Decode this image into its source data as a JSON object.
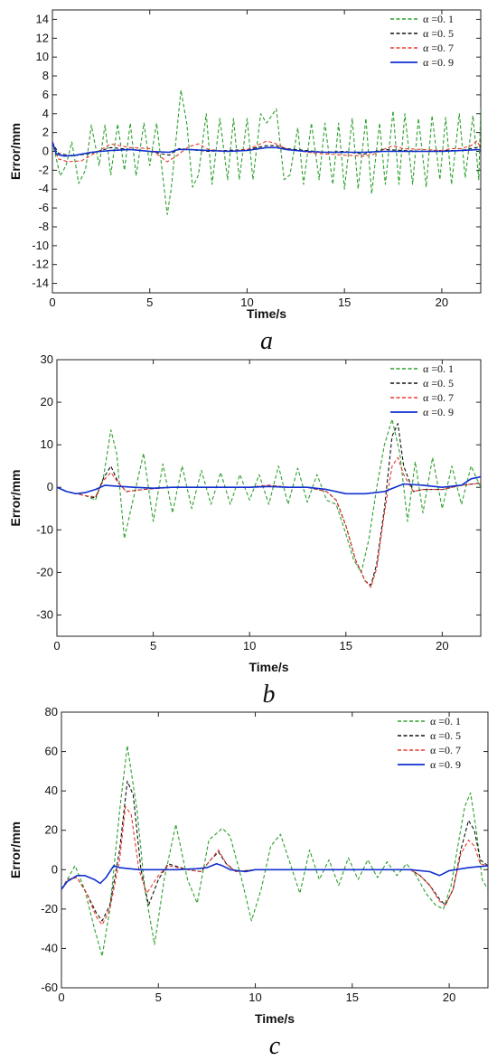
{
  "chart_data": [
    {
      "type": "line",
      "panel_label": "a",
      "xlabel": "Time/s",
      "ylabel": "Error/mm",
      "xlim": [
        0,
        22
      ],
      "ylim": [
        -15,
        15
      ],
      "xticks": [
        0,
        5,
        10,
        15,
        20
      ],
      "yticks": [
        14,
        12,
        10,
        8,
        6,
        4,
        2,
        0,
        -2,
        -4,
        -6,
        -8,
        -10,
        -12,
        -14
      ],
      "legend_position": "top-right",
      "series": [
        {
          "name": "α =0. 1",
          "color": "#2ca02c",
          "dash": "dashed",
          "x": [
            0.0,
            0.15,
            0.4,
            0.7,
            1.0,
            1.35,
            1.7,
            2.0,
            2.4,
            2.7,
            3.0,
            3.35,
            3.7,
            4.0,
            4.3,
            4.7,
            5.0,
            5.35,
            5.9,
            6.1,
            6.6,
            6.9,
            7.2,
            7.5,
            7.9,
            8.2,
            8.6,
            9.0,
            9.3,
            9.6,
            10.0,
            10.3,
            10.7,
            11.0,
            11.5,
            11.9,
            12.2,
            12.6,
            12.9,
            13.3,
            13.7,
            14.0,
            14.4,
            14.7,
            15.0,
            15.4,
            15.7,
            16.1,
            16.4,
            16.8,
            17.1,
            17.5,
            17.8,
            18.1,
            18.5,
            18.8,
            19.2,
            19.5,
            19.9,
            20.2,
            20.5,
            20.9,
            21.2,
            21.6,
            21.9,
            22.0
          ],
          "y": [
            1.0,
            -0.3,
            -2.6,
            -1.5,
            1.0,
            -3.4,
            -2.0,
            2.8,
            -1.5,
            2.8,
            -2.5,
            2.9,
            -2.0,
            3.0,
            -2.6,
            3.0,
            -1.5,
            3.0,
            -6.7,
            -4.0,
            6.5,
            3.0,
            -3.8,
            -2.5,
            4.0,
            -3.5,
            3.5,
            -3.0,
            3.5,
            -3.0,
            3.5,
            -3.0,
            4.0,
            3.0,
            4.5,
            -3.0,
            -2.5,
            2.5,
            -3.5,
            3.0,
            -3.0,
            3.0,
            -3.5,
            3.0,
            -4.0,
            3.5,
            -4.0,
            3.5,
            -4.5,
            3.0,
            -3.5,
            4.3,
            -3.5,
            4.0,
            -3.5,
            3.5,
            -3.8,
            3.8,
            -3.0,
            3.6,
            -3.5,
            4.0,
            -2.8,
            3.8,
            -3.0,
            4.5
          ]
        },
        {
          "name": "α =0. 5",
          "color": "#111111",
          "dash": "dashed",
          "x": [
            0,
            0.3,
            1,
            2,
            3,
            4,
            5,
            5.5,
            6,
            6.5,
            7,
            8,
            9,
            10,
            11,
            11.5,
            12,
            13,
            14,
            15,
            16,
            17,
            18,
            19,
            20,
            21,
            22
          ],
          "y": [
            1.0,
            -0.2,
            -0.5,
            -0.2,
            0.4,
            0.2,
            0,
            -0.2,
            -0.4,
            0.3,
            0.2,
            0,
            0.1,
            0.2,
            0.6,
            0.6,
            0.3,
            0.1,
            -0.1,
            0,
            -0.3,
            0.2,
            0.1,
            0,
            0.1,
            0.1,
            0.5
          ]
        },
        {
          "name": "α =0. 7",
          "color": "#e8392a",
          "dash": "dashed",
          "x": [
            0,
            0.3,
            0.8,
            1.5,
            2.5,
            3,
            4,
            5,
            5.5,
            5.9,
            6.3,
            7,
            7.5,
            8,
            9,
            10,
            10.5,
            11,
            11.5,
            12,
            12.5,
            13.5,
            15,
            16,
            16.5,
            17,
            17.5,
            18,
            19,
            20,
            20.5,
            21,
            21.5,
            21.8,
            22
          ],
          "y": [
            1.0,
            -0.8,
            -1.1,
            -1.0,
            0.2,
            0.8,
            0.4,
            0.3,
            -0.5,
            -1.1,
            -0.6,
            0.5,
            0.8,
            0.2,
            0,
            0.2,
            0.6,
            1.1,
            0.8,
            0.3,
            0.1,
            -0.2,
            -0.4,
            -0.5,
            -0.3,
            0.2,
            0.6,
            0.3,
            0.2,
            0.1,
            0.3,
            0.3,
            0.6,
            1.1,
            0.4
          ]
        },
        {
          "name": "α =0. 9",
          "color": "#1030d0",
          "dash": "solid",
          "x": [
            0,
            0.2,
            0.6,
            1.2,
            2,
            3,
            4,
            5,
            6,
            6.5,
            7,
            8,
            9,
            10,
            11,
            11.5,
            12,
            13,
            14,
            15,
            16,
            17,
            18,
            19,
            20,
            21,
            22
          ],
          "y": [
            1.0,
            -0.3,
            -0.5,
            -0.4,
            -0.1,
            0.1,
            0.2,
            0,
            -0.1,
            0.2,
            0.2,
            0.1,
            0,
            0.1,
            0.4,
            0.4,
            0.2,
            0,
            -0.1,
            -0.1,
            -0.1,
            0,
            0,
            0,
            0,
            0.1,
            0.2
          ]
        }
      ]
    },
    {
      "type": "line",
      "panel_label": "b",
      "xlabel": "Time/s",
      "ylabel": "Error/mm",
      "xlim": [
        0,
        22
      ],
      "ylim": [
        -35,
        30
      ],
      "xticks": [
        0,
        5,
        10,
        15,
        20
      ],
      "yticks": [
        30,
        20,
        10,
        0,
        -10,
        -20,
        -30
      ],
      "legend_position": "top-right",
      "series": [
        {
          "name": "α =0. 1",
          "color": "#2ca02c",
          "dash": "dashed",
          "x": [
            0,
            0.5,
            1,
            1.5,
            2,
            2.4,
            2.8,
            3.1,
            3.5,
            4.0,
            4.5,
            5.0,
            5.5,
            6.0,
            6.5,
            7.0,
            7.5,
            8.0,
            8.5,
            9.0,
            9.5,
            10.0,
            10.5,
            11.0,
            11.5,
            12.0,
            12.5,
            13.0,
            13.5,
            14.0,
            14.5,
            15.0,
            15.4,
            15.8,
            16.2,
            16.6,
            17.0,
            17.4,
            17.8,
            18.2,
            18.6,
            19.0,
            19.5,
            20.0,
            20.5,
            21.0,
            21.5,
            22.0
          ],
          "y": [
            0,
            -1,
            -1.5,
            -2,
            -3,
            2,
            13.5,
            8,
            -12,
            -2,
            8,
            -8,
            5.5,
            -6,
            5,
            -5,
            4,
            -4,
            3.5,
            -4,
            3,
            -3,
            3,
            -4,
            5,
            -4,
            4.5,
            -3.5,
            3,
            -3,
            -4,
            -11,
            -17,
            -20,
            -12,
            0,
            10,
            16,
            8,
            -8,
            6,
            -6,
            7,
            -5,
            5,
            -4,
            5,
            0
          ]
        },
        {
          "name": "α =0. 5",
          "color": "#111111",
          "dash": "dashed",
          "x": [
            0,
            0.5,
            1.5,
            2.0,
            2.4,
            2.8,
            3.2,
            3.6,
            4.5,
            6,
            8,
            10,
            11,
            12,
            13,
            14,
            14.5,
            15,
            15.5,
            16,
            16.3,
            16.6,
            17.0,
            17.4,
            17.7,
            18.0,
            18.5,
            19,
            20,
            21,
            22
          ],
          "y": [
            0,
            -1,
            -2,
            -2.5,
            2,
            5,
            1,
            -1,
            -0.5,
            0,
            0,
            0,
            0.5,
            0,
            0,
            -1,
            -3,
            -9,
            -17,
            -22,
            -23,
            -18,
            -5,
            12,
            15,
            5,
            -1,
            -0.5,
            -0.5,
            0.5,
            1
          ]
        },
        {
          "name": "α =0. 7",
          "color": "#e8392a",
          "dash": "dashed",
          "x": [
            0,
            0.5,
            1.5,
            2.0,
            2.4,
            2.8,
            3.2,
            3.6,
            4.5,
            6,
            8,
            10,
            11,
            12,
            13,
            14,
            14.5,
            15,
            15.5,
            16,
            16.3,
            16.6,
            17.0,
            17.4,
            17.7,
            18.0,
            18.5,
            19,
            20,
            21,
            22
          ],
          "y": [
            0,
            -1,
            -2,
            -2.2,
            1.5,
            3.5,
            1,
            -1,
            -0.5,
            0,
            0,
            0,
            0.5,
            0,
            0,
            -1,
            -3,
            -9,
            -17,
            -22,
            -23.5,
            -19,
            -6,
            5,
            7,
            3,
            -1,
            -0.5,
            -0.5,
            0.5,
            1
          ]
        },
        {
          "name": "α =0. 9",
          "color": "#1030d0",
          "dash": "solid",
          "x": [
            0,
            0.5,
            1,
            1.5,
            2,
            2.5,
            3,
            4,
            5,
            6,
            8,
            10,
            11,
            12,
            13,
            14,
            15,
            16,
            17,
            18,
            19,
            20,
            21,
            21.5,
            22
          ],
          "y": [
            0,
            -1,
            -1.5,
            -1.2,
            -0.5,
            0.5,
            0.3,
            0,
            -0.2,
            0,
            0,
            0,
            0.2,
            0,
            0,
            -0.5,
            -1.5,
            -1.5,
            -1,
            0.8,
            0.5,
            0,
            0.5,
            2,
            2.5
          ]
        }
      ]
    },
    {
      "type": "line",
      "panel_label": "c",
      "xlabel": "Time/s",
      "ylabel": "Error/mm",
      "xlim": [
        0,
        22
      ],
      "ylim": [
        -60,
        80
      ],
      "xticks": [
        0,
        5,
        10,
        15,
        20
      ],
      "yticks": [
        80,
        60,
        40,
        20,
        0,
        -20,
        -40,
        -60
      ],
      "legend_position": "top-right",
      "series": [
        {
          "name": "α =0. 1",
          "color": "#2ca02c",
          "dash": "dashed",
          "x": [
            0,
            0.3,
            0.7,
            1.2,
            1.7,
            2.1,
            2.5,
            3.0,
            3.4,
            3.9,
            4.3,
            4.8,
            5.3,
            5.9,
            6.5,
            7.0,
            7.6,
            8.3,
            8.7,
            9.3,
            9.8,
            10.3,
            10.8,
            11.3,
            11.8,
            12.3,
            12.8,
            13.3,
            13.8,
            14.3,
            14.8,
            15.3,
            15.8,
            16.3,
            16.8,
            17.3,
            17.8,
            18.3,
            18.8,
            19.3,
            19.7,
            20.1,
            20.5,
            20.8,
            21.1,
            21.4,
            21.7,
            22.0
          ],
          "y": [
            -10,
            -5,
            2,
            -10,
            -30,
            -44,
            -20,
            30,
            63,
            30,
            -10,
            -38,
            -5,
            23,
            -5,
            -17,
            15,
            21,
            17,
            -5,
            -26,
            -10,
            12,
            18,
            3,
            -12,
            10,
            -5,
            5,
            -8,
            6,
            -5,
            5,
            -4,
            4,
            -3,
            3,
            -3,
            -12,
            -18,
            -20,
            -8,
            15,
            32,
            39,
            20,
            -5,
            -10
          ]
        },
        {
          "name": "α =0. 5",
          "color": "#111111",
          "dash": "dashed",
          "x": [
            0,
            0.3,
            0.8,
            1.3,
            1.8,
            2.1,
            2.5,
            3.0,
            3.4,
            3.7,
            4.1,
            4.5,
            5.0,
            5.5,
            6.5,
            7.2,
            7.7,
            8.1,
            8.5,
            9.0,
            10,
            12,
            14,
            16,
            17,
            18,
            18.5,
            19.0,
            19.5,
            19.8,
            20.2,
            20.6,
            21.0,
            21.3,
            21.6,
            22.0
          ],
          "y": [
            -10,
            -5,
            -4,
            -12,
            -22,
            -26,
            -18,
            10,
            45,
            38,
            0,
            -18,
            -5,
            3,
            0,
            -1,
            5,
            9,
            3,
            -1,
            0,
            0,
            0,
            0,
            0,
            0,
            -3,
            -8,
            -15,
            -18,
            -10,
            10,
            25,
            20,
            5,
            2
          ]
        },
        {
          "name": "α =0. 7",
          "color": "#e8392a",
          "dash": "dashed",
          "x": [
            0,
            0.3,
            0.8,
            1.3,
            1.8,
            2.1,
            2.5,
            3.0,
            3.3,
            3.6,
            4.0,
            4.4,
            5.0,
            5.5,
            6.5,
            7.2,
            7.7,
            8.1,
            8.5,
            9.0,
            10,
            12,
            14,
            16,
            17,
            18,
            18.5,
            19.0,
            19.5,
            19.8,
            20.2,
            20.6,
            21.0,
            21.3,
            21.6,
            22.0
          ],
          "y": [
            -10,
            -5,
            -4,
            -12,
            -24,
            -28,
            -20,
            5,
            32,
            28,
            0,
            -12,
            -3,
            2,
            0,
            -1,
            5,
            10,
            3,
            -1,
            0,
            0,
            0,
            0,
            0,
            0,
            -3,
            -8,
            -16,
            -18,
            -10,
            8,
            15,
            12,
            3,
            2
          ]
        },
        {
          "name": "α =0. 9",
          "color": "#1030d0",
          "dash": "solid",
          "x": [
            0,
            0.3,
            0.8,
            1.2,
            1.7,
            2.0,
            2.3,
            2.7,
            3.0,
            4,
            5,
            6,
            7,
            7.5,
            8.0,
            8.3,
            8.7,
            9.5,
            10,
            12,
            14,
            16,
            18,
            19.0,
            19.5,
            20,
            21,
            22
          ],
          "y": [
            -10,
            -6,
            -3,
            -3,
            -5,
            -7,
            -4,
            2,
            1,
            0,
            0,
            0,
            0.5,
            1,
            3,
            2,
            0,
            -1,
            0,
            0,
            0,
            0,
            0,
            -1,
            -3,
            -0.5,
            1,
            2
          ]
        }
      ]
    }
  ]
}
